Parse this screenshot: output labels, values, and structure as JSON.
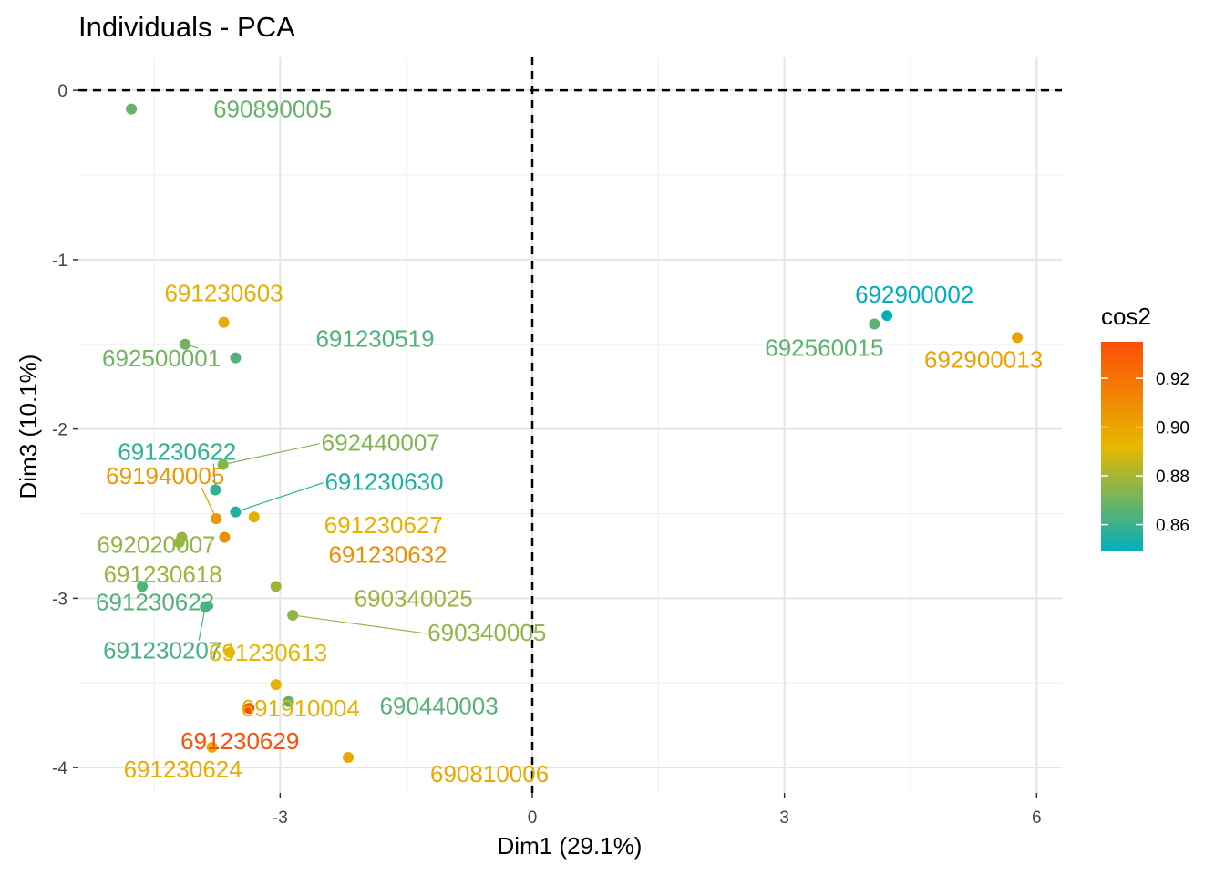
{
  "chart_data": {
    "type": "scatter",
    "title": "Individuals - PCA",
    "xlabel": "Dim1 (29.1%)",
    "ylabel": "Dim3 (10.1%)",
    "xlim": [
      -5.4,
      6.3
    ],
    "ylim": [
      -4.15,
      0.2
    ],
    "x_ticks": [
      -3,
      0,
      3,
      6
    ],
    "x_tick_labels": [
      "-3",
      "0",
      "3",
      "6"
    ],
    "y_ticks": [
      0,
      -1,
      -2,
      -3,
      -4
    ],
    "y_tick_labels": [
      "0",
      "-1",
      "-2",
      "-3",
      "-4"
    ],
    "grid": true,
    "reference_lines": {
      "x": 0,
      "y": 0
    },
    "legend": {
      "title": "cos2",
      "position": "right",
      "range": [
        0.849,
        0.935
      ],
      "ticks": [
        0.86,
        0.88,
        0.9,
        0.92
      ],
      "tick_labels": [
        "0.86",
        "0.88",
        "0.90",
        "0.92"
      ],
      "colors": [
        "#00AFBB",
        "#E7B800",
        "#FC4E07"
      ]
    },
    "points": [
      {
        "label": "690890005",
        "x": -4.77,
        "y": -0.11,
        "cos2": 0.868
      },
      {
        "label": "691230603",
        "x": -3.67,
        "y": -1.37,
        "cos2": 0.897
      },
      {
        "label": "691230519",
        "x": -3.53,
        "y": -1.58,
        "cos2": 0.864
      },
      {
        "label": "692500001",
        "x": -4.13,
        "y": -1.5,
        "cos2": 0.87
      },
      {
        "label": "691230622",
        "x": -3.77,
        "y": -2.36,
        "cos2": 0.858
      },
      {
        "label": "692440007",
        "x": -3.68,
        "y": -2.21,
        "cos2": 0.873
      },
      {
        "label": "691940005",
        "x": -3.76,
        "y": -2.53,
        "cos2": 0.905
      },
      {
        "label": "691230630",
        "x": -3.53,
        "y": -2.49,
        "cos2": 0.855
      },
      {
        "label": "691230627",
        "x": -3.31,
        "y": -2.52,
        "cos2": 0.895
      },
      {
        "label": "692020007",
        "x": -4.17,
        "y": -2.64,
        "cos2": 0.876
      },
      {
        "label": "691230618",
        "x": -4.2,
        "y": -2.67,
        "cos2": 0.878
      },
      {
        "label": "691230632",
        "x": -3.66,
        "y": -2.64,
        "cos2": 0.909
      },
      {
        "label": "691230623",
        "x": -4.64,
        "y": -2.93,
        "cos2": 0.864
      },
      {
        "label": "690340025",
        "x": -3.05,
        "y": -2.93,
        "cos2": 0.878
      },
      {
        "label": "691230207",
        "x": -3.89,
        "y": -3.05,
        "cos2": 0.862
      },
      {
        "label": "690340005",
        "x": -2.85,
        "y": -3.1,
        "cos2": 0.876
      },
      {
        "label": "691230613",
        "x": -3.6,
        "y": -3.32,
        "cos2": 0.893
      },
      {
        "label": "691910004",
        "x": -3.05,
        "y": -3.51,
        "cos2": 0.895
      },
      {
        "label": "690440003",
        "x": -2.9,
        "y": -3.61,
        "cos2": 0.865
      },
      {
        "label": "691230629",
        "x": -3.37,
        "y": -3.65,
        "cos2": 0.935
      },
      {
        "label": "691230624",
        "x": -3.81,
        "y": -3.88,
        "cos2": 0.897
      },
      {
        "label": "690810006",
        "x": -2.19,
        "y": -3.94,
        "cos2": 0.899
      },
      {
        "label": "692900002",
        "x": 4.22,
        "y": -1.33,
        "cos2": 0.849
      },
      {
        "label": "692560015",
        "x": 4.07,
        "y": -1.38,
        "cos2": 0.866
      },
      {
        "label": "692900013",
        "x": 5.77,
        "y": -1.46,
        "cos2": 0.901
      }
    ]
  }
}
